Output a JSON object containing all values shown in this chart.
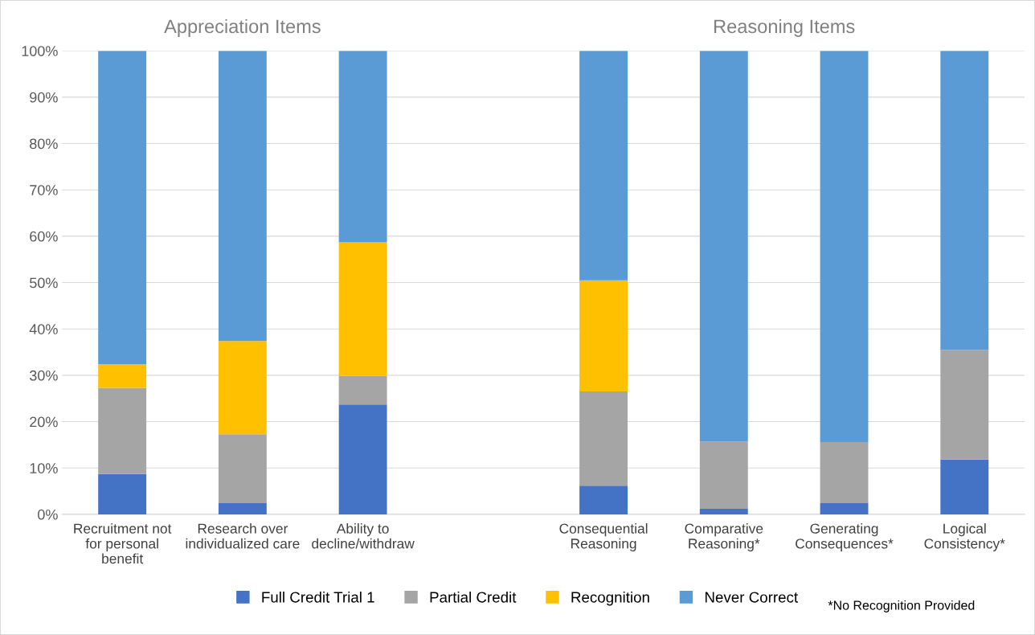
{
  "chart_data": {
    "type": "bar",
    "stacked": true,
    "annotations": [
      "Appreciation Items",
      "Reasoning Items",
      "*No Recognition Provided"
    ],
    "categories": [
      "Recruitment not\nfor personal\nbenefit",
      "Research over\nindividualized care",
      "Ability to\ndecline/withdraw",
      null,
      "Consequential\nReasoning",
      "Comparative\nReasoning*",
      "Generating\nConsequences*",
      "Logical\nConsistency*"
    ],
    "series": [
      {
        "name": "Full Credit Trial 1",
        "color": "#4472c4",
        "values": [
          8.7,
          2.4,
          23.7,
          null,
          6.2,
          1.2,
          2.4,
          11.8
        ]
      },
      {
        "name": "Partial Credit",
        "color": "#a5a5a5",
        "values": [
          18.6,
          14.9,
          6.2,
          null,
          20.3,
          14.5,
          13.2,
          23.7
        ]
      },
      {
        "name": "Recognition",
        "color": "#ffc000",
        "values": [
          5.1,
          20.1,
          28.8,
          null,
          24.0,
          0,
          0,
          0
        ]
      },
      {
        "name": "Never Correct",
        "color": "#5b9bd5",
        "values": [
          67.6,
          62.6,
          41.3,
          null,
          49.5,
          84.3,
          84.4,
          64.5
        ]
      }
    ],
    "ylim": [
      0,
      100
    ],
    "yticks": [
      {
        "value": 0,
        "label": "0%"
      },
      {
        "value": 10,
        "label": "10%"
      },
      {
        "value": 20,
        "label": "20%"
      },
      {
        "value": 30,
        "label": "30%"
      },
      {
        "value": 40,
        "label": "40%"
      },
      {
        "value": 50,
        "label": "50%"
      },
      {
        "value": 60,
        "label": "60%"
      },
      {
        "value": 70,
        "label": "70%"
      },
      {
        "value": 80,
        "label": "80%"
      },
      {
        "value": 90,
        "label": "90%"
      },
      {
        "value": 100,
        "label": "100%"
      }
    ],
    "grid": "y",
    "legend": "bottom"
  }
}
